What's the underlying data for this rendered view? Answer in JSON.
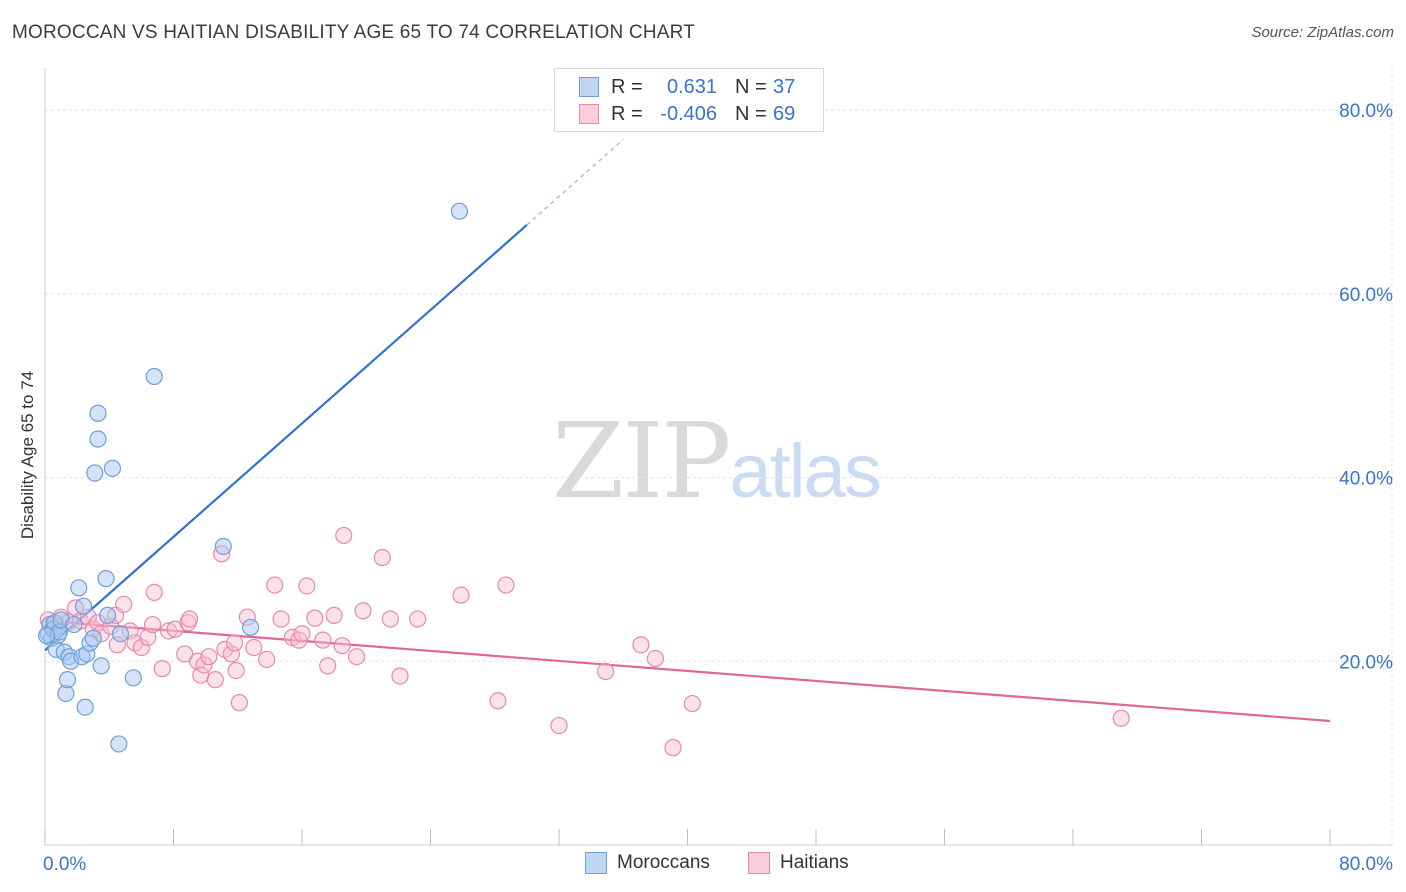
{
  "header": {
    "title": "MOROCCAN VS HAITIAN DISABILITY AGE 65 TO 74 CORRELATION CHART",
    "source": "Source: ZipAtlas.com"
  },
  "watermark": {
    "zip": "ZIP",
    "atlas": "atlas"
  },
  "legend": {
    "moroccans": {
      "r_label": "R =",
      "r_value": "0.631",
      "n_label": "N =",
      "n_value": "37"
    },
    "haitians": {
      "r_label": "R =",
      "r_value": "-0.406",
      "n_label": "N =",
      "n_value": "69"
    }
  },
  "colors": {
    "moroccans_fill": "#aac8f0",
    "moroccans_stroke": "#6f9fd8",
    "moroccans_line": "#2f72cf",
    "haitians_fill": "#f7bcd0",
    "haitians_stroke": "#e88aa9",
    "haitians_line": "#e0669a",
    "axis_text": "#3b74c9",
    "grid": "#e3e3e3"
  },
  "chart_data": {
    "type": "scatter",
    "title": "MOROCCAN VS HAITIAN DISABILITY AGE 65 TO 74 CORRELATION CHART",
    "xlabel": "",
    "ylabel": "Disability Age 65 to 74",
    "xlim": [
      0,
      80
    ],
    "ylim": [
      0,
      83.5
    ],
    "x_tick_labels": [
      "0.0%",
      "80.0%"
    ],
    "y_ticks": [
      20,
      40,
      60,
      80
    ],
    "y_tick_labels": [
      "20.0%",
      "40.0%",
      "60.0%",
      "80.0%"
    ],
    "grid": true,
    "series": [
      {
        "name": "Moroccans",
        "r": 0.631,
        "n": 37,
        "trend": {
          "x_start": 0.0,
          "y_start": 21.2,
          "x_end": 30.0,
          "y_end": 67.5,
          "dashed_to_x": 36.0,
          "dashed_to_y": 76.8
        },
        "points": [
          [
            0.2,
            23.0
          ],
          [
            0.3,
            24.0
          ],
          [
            0.4,
            22.5
          ],
          [
            0.5,
            23.5
          ],
          [
            0.6,
            24.2
          ],
          [
            0.7,
            21.3
          ],
          [
            0.8,
            22.8
          ],
          [
            0.9,
            23.2
          ],
          [
            1.0,
            24.5
          ],
          [
            1.2,
            21.0
          ],
          [
            1.3,
            16.5
          ],
          [
            1.4,
            18.0
          ],
          [
            1.5,
            20.5
          ],
          [
            1.6,
            20.0
          ],
          [
            1.8,
            24.0
          ],
          [
            2.1,
            28.0
          ],
          [
            2.3,
            20.5
          ],
          [
            2.4,
            26.0
          ],
          [
            2.5,
            15.0
          ],
          [
            2.6,
            20.8
          ],
          [
            2.8,
            22.0
          ],
          [
            3.0,
            22.5
          ],
          [
            3.3,
            47.0
          ],
          [
            3.3,
            44.2
          ],
          [
            3.1,
            40.5
          ],
          [
            3.5,
            19.5
          ],
          [
            3.9,
            25.0
          ],
          [
            3.8,
            29.0
          ],
          [
            4.2,
            41.0
          ],
          [
            4.6,
            11.0
          ],
          [
            4.7,
            23.0
          ],
          [
            5.5,
            18.2
          ],
          [
            6.8,
            51.0
          ],
          [
            11.1,
            32.5
          ],
          [
            12.8,
            23.7
          ],
          [
            25.8,
            69.0
          ],
          [
            0.1,
            22.8
          ]
        ]
      },
      {
        "name": "Haitians",
        "r": -0.406,
        "n": 69,
        "trend": {
          "x_start": 0.0,
          "y_start": 24.4,
          "x_end": 80.0,
          "y_end": 13.5
        },
        "points": [
          [
            0.2,
            24.5
          ],
          [
            0.5,
            24.0
          ],
          [
            0.8,
            23.8
          ],
          [
            1.0,
            24.8
          ],
          [
            1.5,
            24.3
          ],
          [
            1.9,
            25.8
          ],
          [
            2.2,
            24.4
          ],
          [
            2.7,
            24.8
          ],
          [
            3.0,
            23.5
          ],
          [
            3.3,
            24.2
          ],
          [
            3.5,
            23.0
          ],
          [
            4.1,
            23.8
          ],
          [
            4.4,
            25.0
          ],
          [
            4.5,
            21.8
          ],
          [
            4.9,
            26.2
          ],
          [
            5.3,
            23.3
          ],
          [
            5.6,
            22.0
          ],
          [
            6.0,
            21.5
          ],
          [
            6.4,
            22.6
          ],
          [
            6.7,
            24.0
          ],
          [
            6.8,
            27.5
          ],
          [
            7.3,
            19.2
          ],
          [
            7.7,
            23.3
          ],
          [
            8.1,
            23.5
          ],
          [
            8.7,
            20.8
          ],
          [
            8.9,
            24.2
          ],
          [
            9.0,
            24.6
          ],
          [
            9.5,
            20.0
          ],
          [
            9.7,
            18.5
          ],
          [
            9.9,
            19.6
          ],
          [
            10.2,
            20.5
          ],
          [
            10.6,
            18.0
          ],
          [
            11.0,
            31.7
          ],
          [
            11.2,
            21.3
          ],
          [
            11.6,
            20.8
          ],
          [
            11.9,
            19.0
          ],
          [
            12.1,
            15.5
          ],
          [
            12.6,
            24.8
          ],
          [
            13.0,
            21.5
          ],
          [
            13.8,
            20.2
          ],
          [
            14.3,
            28.3
          ],
          [
            14.7,
            24.6
          ],
          [
            15.4,
            22.6
          ],
          [
            15.8,
            22.3
          ],
          [
            16.0,
            23.0
          ],
          [
            16.3,
            28.2
          ],
          [
            16.8,
            24.7
          ],
          [
            17.3,
            22.3
          ],
          [
            17.6,
            19.5
          ],
          [
            18.0,
            25.0
          ],
          [
            18.5,
            21.7
          ],
          [
            18.6,
            33.7
          ],
          [
            19.4,
            20.5
          ],
          [
            19.8,
            25.5
          ],
          [
            21.0,
            31.3
          ],
          [
            21.5,
            24.6
          ],
          [
            22.1,
            18.4
          ],
          [
            23.2,
            24.6
          ],
          [
            25.9,
            27.2
          ],
          [
            28.2,
            15.7
          ],
          [
            28.7,
            28.3
          ],
          [
            32.0,
            13.0
          ],
          [
            34.9,
            18.9
          ],
          [
            37.1,
            21.8
          ],
          [
            38.0,
            20.3
          ],
          [
            39.1,
            10.6
          ],
          [
            40.3,
            15.4
          ],
          [
            67.0,
            13.8
          ],
          [
            11.8,
            22.0
          ]
        ]
      }
    ]
  },
  "bottom_legend": {
    "moroccans": "Moroccans",
    "haitians": "Haitians"
  }
}
